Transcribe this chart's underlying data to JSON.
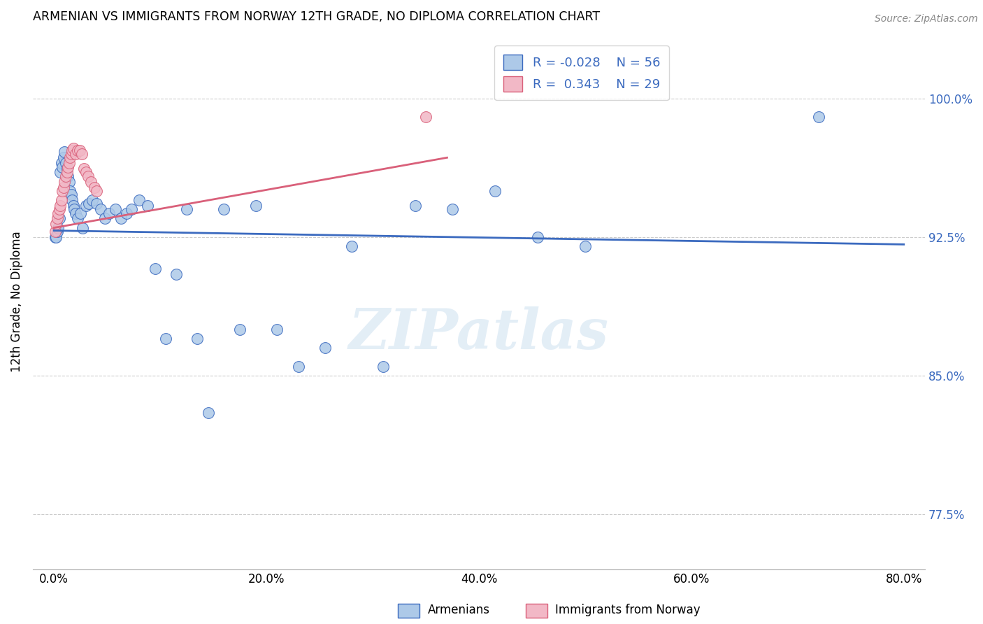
{
  "title": "ARMENIAN VS IMMIGRANTS FROM NORWAY 12TH GRADE, NO DIPLOMA CORRELATION CHART",
  "source": "Source: ZipAtlas.com",
  "ylabel_label": "12th Grade, No Diploma",
  "watermark": "ZIPatlas",
  "legend_armenians": "Armenians",
  "legend_norway": "Immigrants from Norway",
  "R_armenians": "-0.028",
  "N_armenians": "56",
  "R_norway": "0.343",
  "N_norway": "29",
  "color_armenians": "#adc9e8",
  "color_norway": "#f2b8c6",
  "line_color_armenians": "#3b6abf",
  "line_color_norway": "#d9607a",
  "ytick_vals": [
    0.775,
    0.85,
    0.925,
    1.0
  ],
  "ytick_labels": [
    "77.5%",
    "85.0%",
    "92.5%",
    "100.0%"
  ],
  "xtick_vals": [
    0.0,
    0.1,
    0.2,
    0.3,
    0.4,
    0.5,
    0.6,
    0.7,
    0.8
  ],
  "xtick_labels": [
    "0.0%",
    "",
    "20.0%",
    "",
    "40.0%",
    "",
    "60.0%",
    "",
    "80.0%"
  ],
  "xlim": [
    -0.02,
    0.82
  ],
  "ylim": [
    0.745,
    1.035
  ],
  "armenians_x": [
    0.001,
    0.002,
    0.003,
    0.004,
    0.005,
    0.006,
    0.007,
    0.008,
    0.009,
    0.01,
    0.011,
    0.012,
    0.013,
    0.014,
    0.015,
    0.016,
    0.017,
    0.018,
    0.019,
    0.02,
    0.022,
    0.025,
    0.027,
    0.03,
    0.033,
    0.036,
    0.04,
    0.044,
    0.048,
    0.052,
    0.058,
    0.063,
    0.068,
    0.073,
    0.08,
    0.088,
    0.095,
    0.105,
    0.115,
    0.125,
    0.135,
    0.145,
    0.16,
    0.175,
    0.19,
    0.21,
    0.23,
    0.255,
    0.28,
    0.31,
    0.34,
    0.375,
    0.415,
    0.455,
    0.5,
    0.72
  ],
  "armenians_y": [
    0.925,
    0.925,
    0.928,
    0.93,
    0.935,
    0.96,
    0.965,
    0.963,
    0.968,
    0.971,
    0.965,
    0.962,
    0.958,
    0.955,
    0.95,
    0.948,
    0.945,
    0.942,
    0.94,
    0.938,
    0.935,
    0.938,
    0.93,
    0.942,
    0.943,
    0.945,
    0.943,
    0.94,
    0.935,
    0.938,
    0.94,
    0.935,
    0.938,
    0.94,
    0.945,
    0.942,
    0.908,
    0.87,
    0.905,
    0.94,
    0.87,
    0.83,
    0.94,
    0.875,
    0.942,
    0.875,
    0.855,
    0.865,
    0.92,
    0.855,
    0.942,
    0.94,
    0.95,
    0.925,
    0.92,
    0.99
  ],
  "norway_x": [
    0.001,
    0.002,
    0.003,
    0.004,
    0.005,
    0.006,
    0.007,
    0.008,
    0.009,
    0.01,
    0.011,
    0.012,
    0.013,
    0.014,
    0.015,
    0.016,
    0.017,
    0.018,
    0.02,
    0.022,
    0.024,
    0.026,
    0.028,
    0.03,
    0.032,
    0.035,
    0.038,
    0.04,
    0.35
  ],
  "norway_y": [
    0.928,
    0.932,
    0.935,
    0.938,
    0.94,
    0.942,
    0.945,
    0.95,
    0.952,
    0.955,
    0.958,
    0.96,
    0.963,
    0.965,
    0.968,
    0.97,
    0.972,
    0.973,
    0.97,
    0.972,
    0.972,
    0.97,
    0.962,
    0.96,
    0.958,
    0.955,
    0.952,
    0.95,
    0.99
  ],
  "blue_trendline_x": [
    0.0,
    0.8
  ],
  "blue_trendline_y": [
    0.9285,
    0.921
  ],
  "pink_trendline_x": [
    0.0,
    0.37
  ],
  "pink_trendline_y": [
    0.93,
    0.968
  ]
}
